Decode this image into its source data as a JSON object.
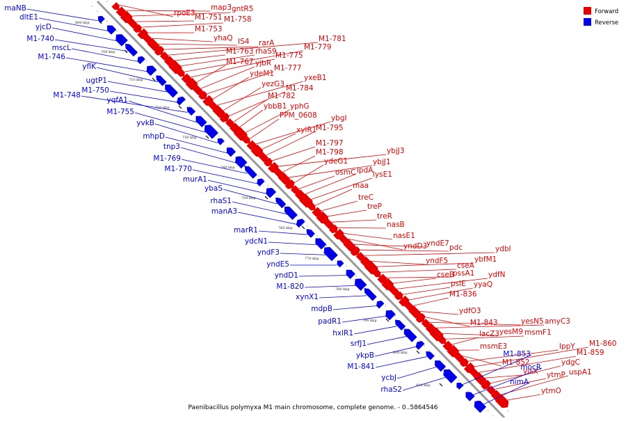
{
  "caption": "Paenibacillus polymyxa M1 main chromosome, complete genome. - 0..5864546",
  "legend": [
    {
      "label": "Forward",
      "color": "#e60000"
    },
    {
      "label": "Reverse",
      "color": "#0000e6"
    }
  ],
  "colors": {
    "forward": "#e60000",
    "reverse": "#0000e6",
    "backbone": "#9a9a9a"
  },
  "ticks": [
    "690 kbp",
    "700 kbp",
    "710 kbp",
    "720 kbp",
    "730 kbp",
    "740 kbp",
    "750 kbp",
    "760 kbp",
    "770 kbp",
    "780 kbp",
    "790 kbp",
    "800 kbp",
    "810 kbp"
  ],
  "forward_labels": [
    "rpoE3",
    "map3",
    "gntR5",
    "M1-751",
    "M1-758",
    "M1-753",
    "yhaQ",
    "IS4",
    "rarA",
    "M1-781",
    "M1-763",
    "rhaS9",
    "M1-779",
    "M1-775",
    "M1-767",
    "yjbR",
    "M1-777",
    "ydeM1",
    "yxeB1",
    "yezG3",
    "M1-784",
    "M1-782",
    "ybbB1",
    "yphG",
    "PPM_0608",
    "ybgI",
    "xylR1",
    "M1-795",
    "M1-797",
    "ybjJ3",
    "M1-798",
    "ybjJ1",
    "ydeG1",
    "osmC",
    "lpdA",
    "lysE1",
    "maa",
    "treC",
    "treP",
    "treR",
    "nasB",
    "nasE1",
    "yndD3",
    "yndE7",
    "pdc",
    "ydbI",
    "yndF5",
    "ybfM1",
    "cseA",
    "pssA1",
    "cseB",
    "ydfN",
    "psiE",
    "yyaQ",
    "M1-836",
    "ydfO3",
    "M1-843",
    "yesN5",
    "amyC3",
    "yesM9",
    "msmF1",
    "lacZ3",
    "msmE3",
    "M1-852",
    "lppY",
    "M1-860",
    "M1-859",
    "yisX",
    "ydgC",
    "ytmP",
    "uspA1",
    "ytmO"
  ],
  "reverse_labels": [
    "maNB",
    "dltE1",
    "yjcD",
    "M1-740",
    "mscL",
    "M1-746",
    "yflK",
    "ugtP1",
    "M1-750",
    "M1-748",
    "yqfA1",
    "M1-755",
    "yvkB",
    "mhpD",
    "tnp3",
    "M1-769",
    "M1-770",
    "murA1",
    "ybaS",
    "rhaS1",
    "manA3",
    "marR1",
    "ydcN1",
    "yndF3",
    "yndE5",
    "yndD1",
    "M1-820",
    "xynX1",
    "mdpB",
    "padR1",
    "hxlR1",
    "srfJ1",
    "ykpB",
    "M1-841",
    "ycbJ",
    "rhaS2",
    "M1-853",
    "mocR",
    "nimA"
  ]
}
